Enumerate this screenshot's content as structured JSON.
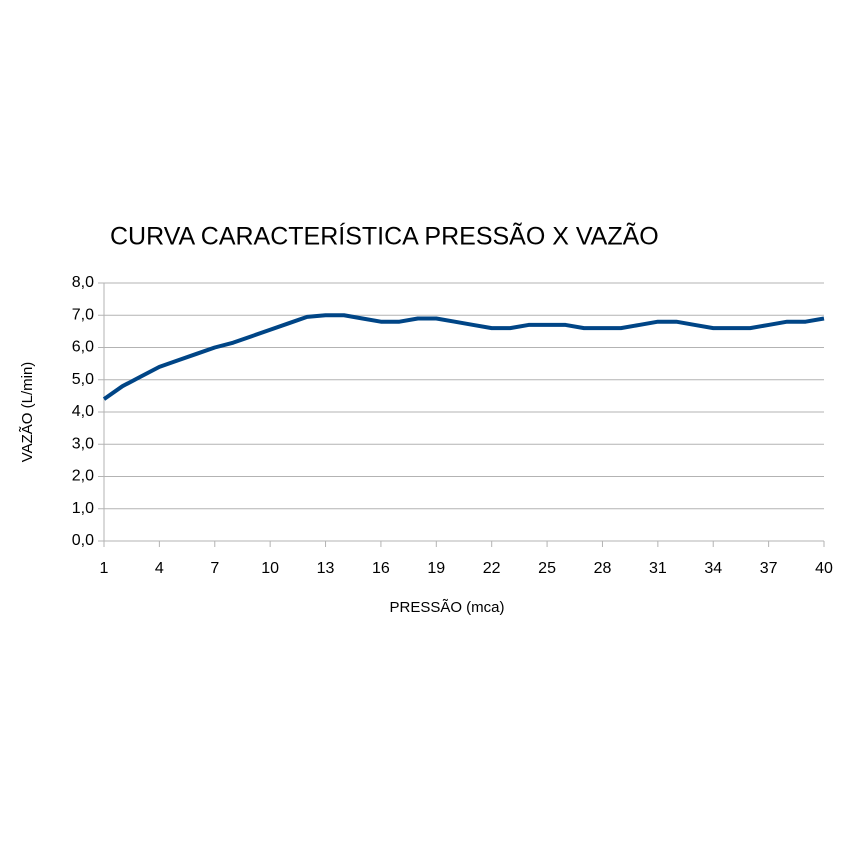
{
  "chart_data": {
    "type": "line",
    "title": "CURVA CARACTERÍSTICA PRESSÃO X VAZÃO",
    "x_label": "PRESSÃO (mca)",
    "y_label": "VAZÃO (L/min)",
    "x": [
      1,
      2,
      3,
      4,
      5,
      6,
      7,
      8,
      9,
      10,
      11,
      12,
      13,
      14,
      15,
      16,
      17,
      18,
      19,
      20,
      21,
      22,
      23,
      24,
      25,
      26,
      27,
      28,
      29,
      30,
      31,
      32,
      33,
      34,
      35,
      36,
      37,
      38,
      39,
      40
    ],
    "series": [
      {
        "name": "VAZÃO",
        "color": "#004586",
        "values": [
          4.4,
          4.8,
          5.1,
          5.4,
          5.6,
          5.8,
          6.0,
          6.15,
          6.35,
          6.55,
          6.75,
          6.95,
          7.0,
          7.0,
          6.9,
          6.8,
          6.8,
          6.9,
          6.9,
          6.8,
          6.7,
          6.6,
          6.6,
          6.7,
          6.7,
          6.7,
          6.6,
          6.6,
          6.6,
          6.7,
          6.8,
          6.8,
          6.7,
          6.6,
          6.6,
          6.6,
          6.7,
          6.8,
          6.8,
          6.9
        ]
      }
    ],
    "xlim": [
      1,
      40
    ],
    "xticks": [
      1,
      4,
      7,
      10,
      13,
      16,
      19,
      22,
      25,
      28,
      31,
      34,
      37,
      40
    ],
    "ylim": [
      0,
      8
    ],
    "yticks": [
      {
        "value": 0,
        "label": "0,0"
      },
      {
        "value": 1,
        "label": "1,0"
      },
      {
        "value": 2,
        "label": "2,0"
      },
      {
        "value": 3,
        "label": "3,0"
      },
      {
        "value": 4,
        "label": "4,0"
      },
      {
        "value": 5,
        "label": "5,0"
      },
      {
        "value": 6,
        "label": "6,0"
      },
      {
        "value": 7,
        "label": "7,0"
      },
      {
        "value": 8,
        "label": "8,0"
      }
    ],
    "grid": true
  }
}
